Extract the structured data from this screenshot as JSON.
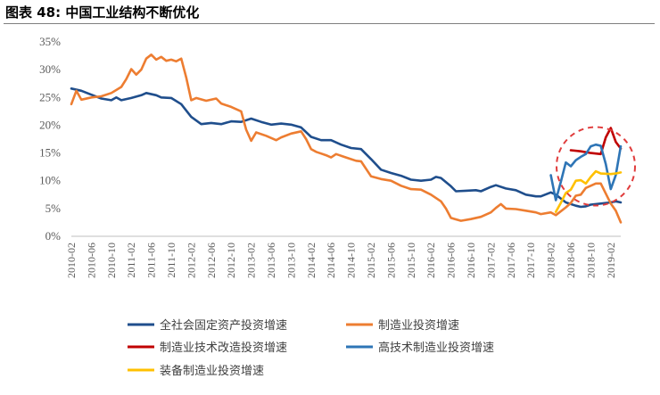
{
  "figure": {
    "title": "图表 48:  中国工业结构不断优化"
  },
  "chart_data": {
    "type": "line",
    "title": "",
    "xlabel": "",
    "ylabel": "",
    "ylim": [
      0,
      35
    ],
    "y_ticks": [
      "0%",
      "5%",
      "10%",
      "15%",
      "20%",
      "25%",
      "30%",
      "35%"
    ],
    "x_ticks": [
      "2010-02",
      "2010-06",
      "2010-10",
      "2011-02",
      "2011-06",
      "2011-10",
      "2012-02",
      "2012-06",
      "2012-10",
      "2013-02",
      "2013-06",
      "2013-10",
      "2014-02",
      "2014-06",
      "2014-10",
      "2015-02",
      "2015-06",
      "2015-10",
      "2016-02",
      "2016-06",
      "2016-10",
      "2017-02",
      "2017-06",
      "2017-10",
      "2018-02",
      "2018-06",
      "2018-10",
      "2019-02"
    ],
    "x_start": "2010-02",
    "x_end": "2019-04",
    "legend_position": "bottom",
    "grid": false,
    "series": [
      {
        "name": "全社会固定资产投资增速",
        "color": "#1F4E8C",
        "points": [
          [
            "2010-02",
            26.6
          ],
          [
            "2010-04",
            26.2
          ],
          [
            "2010-06",
            25.5
          ],
          [
            "2010-08",
            24.8
          ],
          [
            "2010-10",
            24.5
          ],
          [
            "2010-11",
            25.0
          ],
          [
            "2010-12",
            24.5
          ],
          [
            "2011-02",
            24.9
          ],
          [
            "2011-04",
            25.4
          ],
          [
            "2011-05",
            25.8
          ],
          [
            "2011-07",
            25.4
          ],
          [
            "2011-08",
            25.0
          ],
          [
            "2011-10",
            24.9
          ],
          [
            "2011-12",
            23.8
          ],
          [
            "2012-02",
            21.5
          ],
          [
            "2012-04",
            20.2
          ],
          [
            "2012-06",
            20.4
          ],
          [
            "2012-08",
            20.2
          ],
          [
            "2012-10",
            20.7
          ],
          [
            "2012-12",
            20.6
          ],
          [
            "2013-02",
            21.2
          ],
          [
            "2013-04",
            20.6
          ],
          [
            "2013-06",
            20.1
          ],
          [
            "2013-08",
            20.3
          ],
          [
            "2013-10",
            20.1
          ],
          [
            "2013-12",
            19.6
          ],
          [
            "2014-02",
            17.9
          ],
          [
            "2014-04",
            17.3
          ],
          [
            "2014-06",
            17.3
          ],
          [
            "2014-08",
            16.5
          ],
          [
            "2014-10",
            15.9
          ],
          [
            "2014-12",
            15.7
          ],
          [
            "2015-02",
            13.9
          ],
          [
            "2015-04",
            12.0
          ],
          [
            "2015-06",
            11.4
          ],
          [
            "2015-08",
            10.9
          ],
          [
            "2015-10",
            10.2
          ],
          [
            "2015-12",
            10.0
          ],
          [
            "2016-02",
            10.2
          ],
          [
            "2016-03",
            10.7
          ],
          [
            "2016-04",
            10.5
          ],
          [
            "2016-06",
            9.0
          ],
          [
            "2016-07",
            8.1
          ],
          [
            "2016-09",
            8.2
          ],
          [
            "2016-11",
            8.3
          ],
          [
            "2016-12",
            8.1
          ],
          [
            "2017-02",
            8.9
          ],
          [
            "2017-03",
            9.2
          ],
          [
            "2017-05",
            8.6
          ],
          [
            "2017-07",
            8.3
          ],
          [
            "2017-09",
            7.5
          ],
          [
            "2017-11",
            7.2
          ],
          [
            "2017-12",
            7.2
          ],
          [
            "2018-02",
            7.9
          ],
          [
            "2018-03",
            7.5
          ],
          [
            "2018-05",
            6.1
          ],
          [
            "2018-07",
            5.5
          ],
          [
            "2018-08",
            5.3
          ],
          [
            "2018-09",
            5.4
          ],
          [
            "2018-10",
            5.7
          ],
          [
            "2018-12",
            5.9
          ],
          [
            "2019-02",
            6.1
          ],
          [
            "2019-03",
            6.3
          ],
          [
            "2019-04",
            6.1
          ]
        ]
      },
      {
        "name": "制造业投资增速",
        "color": "#ED7D31",
        "points": [
          [
            "2010-02",
            23.8
          ],
          [
            "2010-03",
            26.2
          ],
          [
            "2010-04",
            24.6
          ],
          [
            "2010-06",
            25.0
          ],
          [
            "2010-08",
            25.2
          ],
          [
            "2010-10",
            25.8
          ],
          [
            "2010-12",
            26.9
          ],
          [
            "2011-01",
            28.3
          ],
          [
            "2011-02",
            30.1
          ],
          [
            "2011-03",
            29.1
          ],
          [
            "2011-04",
            30.0
          ],
          [
            "2011-05",
            32.0
          ],
          [
            "2011-06",
            32.7
          ],
          [
            "2011-07",
            31.8
          ],
          [
            "2011-08",
            32.3
          ],
          [
            "2011-09",
            31.6
          ],
          [
            "2011-10",
            31.8
          ],
          [
            "2011-11",
            31.5
          ],
          [
            "2011-12",
            32.0
          ],
          [
            "2012-01",
            28.6
          ],
          [
            "2012-02",
            24.5
          ],
          [
            "2012-03",
            24.9
          ],
          [
            "2012-05",
            24.4
          ],
          [
            "2012-07",
            24.8
          ],
          [
            "2012-08",
            23.9
          ],
          [
            "2012-10",
            23.3
          ],
          [
            "2012-12",
            22.5
          ],
          [
            "2013-01",
            19.2
          ],
          [
            "2013-02",
            17.2
          ],
          [
            "2013-03",
            18.7
          ],
          [
            "2013-05",
            18.1
          ],
          [
            "2013-07",
            17.3
          ],
          [
            "2013-08",
            17.8
          ],
          [
            "2013-10",
            18.5
          ],
          [
            "2013-12",
            18.9
          ],
          [
            "2014-01",
            17.5
          ],
          [
            "2014-02",
            15.7
          ],
          [
            "2014-03",
            15.2
          ],
          [
            "2014-04",
            14.9
          ],
          [
            "2014-05",
            14.6
          ],
          [
            "2014-06",
            14.2
          ],
          [
            "2014-07",
            14.8
          ],
          [
            "2014-09",
            14.2
          ],
          [
            "2014-11",
            13.6
          ],
          [
            "2014-12",
            13.5
          ],
          [
            "2015-02",
            10.8
          ],
          [
            "2015-04",
            10.3
          ],
          [
            "2015-06",
            10.0
          ],
          [
            "2015-08",
            9.1
          ],
          [
            "2015-10",
            8.5
          ],
          [
            "2015-12",
            8.4
          ],
          [
            "2016-02",
            7.5
          ],
          [
            "2016-04",
            6.3
          ],
          [
            "2016-05",
            5.0
          ],
          [
            "2016-06",
            3.3
          ],
          [
            "2016-08",
            2.8
          ],
          [
            "2016-10",
            3.1
          ],
          [
            "2016-12",
            3.5
          ],
          [
            "2017-02",
            4.3
          ],
          [
            "2017-03",
            5.1
          ],
          [
            "2017-04",
            5.8
          ],
          [
            "2017-05",
            5.0
          ],
          [
            "2017-07",
            4.9
          ],
          [
            "2017-09",
            4.6
          ],
          [
            "2017-11",
            4.3
          ],
          [
            "2017-12",
            4.0
          ],
          [
            "2018-02",
            4.3
          ],
          [
            "2018-03",
            3.8
          ],
          [
            "2018-05",
            5.2
          ],
          [
            "2018-06",
            6.0
          ],
          [
            "2018-07",
            7.3
          ],
          [
            "2018-08",
            7.5
          ],
          [
            "2018-09",
            8.7
          ],
          [
            "2018-10",
            9.1
          ],
          [
            "2018-11",
            9.5
          ],
          [
            "2018-12",
            9.5
          ],
          [
            "2019-02",
            5.9
          ],
          [
            "2019-03",
            4.6
          ],
          [
            "2019-04",
            2.5
          ]
        ]
      },
      {
        "name": "制造业技术改造投资增速",
        "color": "#C00000",
        "points": [
          [
            "2018-06",
            15.5
          ],
          [
            "2018-08",
            15.3
          ],
          [
            "2018-10",
            15.0
          ],
          [
            "2018-12",
            14.8
          ],
          [
            "2019-01",
            17.8
          ],
          [
            "2019-02",
            19.5
          ],
          [
            "2019-03",
            17.0
          ],
          [
            "2019-04",
            15.8
          ]
        ]
      },
      {
        "name": "高技术制造业投资增速",
        "color": "#2E75B6",
        "points": [
          [
            "2018-02",
            11.0
          ],
          [
            "2018-03",
            6.5
          ],
          [
            "2018-04",
            9.8
          ],
          [
            "2018-05",
            13.3
          ],
          [
            "2018-06",
            12.6
          ],
          [
            "2018-07",
            13.7
          ],
          [
            "2018-08",
            14.3
          ],
          [
            "2018-09",
            14.8
          ],
          [
            "2018-10",
            16.2
          ],
          [
            "2018-11",
            16.5
          ],
          [
            "2018-12",
            16.3
          ],
          [
            "2019-01",
            13.0
          ],
          [
            "2019-02",
            8.5
          ],
          [
            "2019-03",
            11.0
          ],
          [
            "2019-04",
            16.2
          ]
        ]
      },
      {
        "name": "装备制造业投资增速",
        "color": "#FFC000",
        "points": [
          [
            "2018-03",
            4.4
          ],
          [
            "2018-04",
            6.0
          ],
          [
            "2018-05",
            7.8
          ],
          [
            "2018-06",
            8.4
          ],
          [
            "2018-07",
            10.0
          ],
          [
            "2018-08",
            10.1
          ],
          [
            "2018-09",
            9.5
          ],
          [
            "2018-10",
            10.7
          ],
          [
            "2018-11",
            11.7
          ],
          [
            "2018-12",
            11.3
          ],
          [
            "2019-02",
            11.2
          ],
          [
            "2019-03",
            11.3
          ],
          [
            "2019-04",
            11.5
          ]
        ]
      }
    ],
    "annotations": [
      {
        "type": "dashed-circle",
        "color": "#E03C3C",
        "around": "2018-2019 subsector lines"
      }
    ]
  }
}
